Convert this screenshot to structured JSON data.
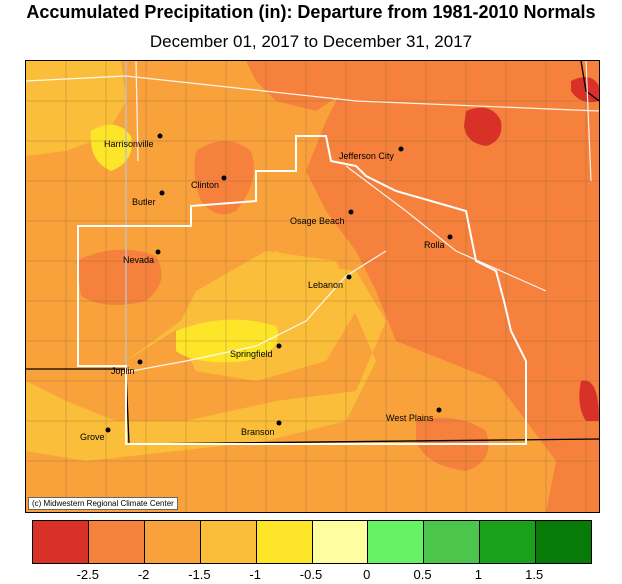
{
  "title": "Accumulated Precipitation (in): Departure from 1981-2010 Normals",
  "subtitle": "December 01, 2017 to December 31, 2017",
  "copyright": "(c) Midwestern Regional Climate Center",
  "cities": [
    {
      "name": "Harrisonville"
    },
    {
      "name": "Jefferson City"
    },
    {
      "name": "Butler"
    },
    {
      "name": "Clinton"
    },
    {
      "name": "Osage Beach"
    },
    {
      "name": "Rolla"
    },
    {
      "name": "Nevada"
    },
    {
      "name": "Lebanon"
    },
    {
      "name": "Joplin"
    },
    {
      "name": "Springfield"
    },
    {
      "name": "West Plains"
    },
    {
      "name": "Branson"
    },
    {
      "name": "Grove"
    }
  ],
  "legend": {
    "colors": [
      "#d93027",
      "#f5813d",
      "#f9a23c",
      "#fbbe3a",
      "#fde62a",
      "#fefea0",
      "#66f265",
      "#4cc54d",
      "#1aa11c",
      "#087a08"
    ],
    "ticks": [
      "-2.5",
      "-2",
      "-1.5",
      "-1",
      "-0.5",
      "0",
      "0.5",
      "1",
      "1.5"
    ]
  }
}
